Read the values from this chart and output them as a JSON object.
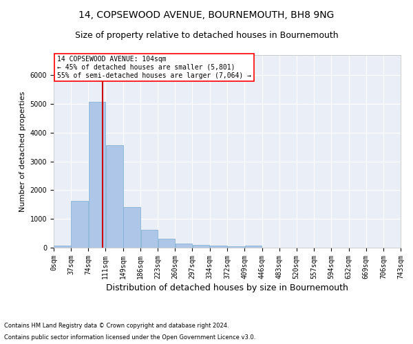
{
  "title1": "14, COPSEWOOD AVENUE, BOURNEMOUTH, BH8 9NG",
  "title2": "Size of property relative to detached houses in Bournemouth",
  "xlabel": "Distribution of detached houses by size in Bournemouth",
  "ylabel": "Number of detached properties",
  "footnote1": "Contains HM Land Registry data © Crown copyright and database right 2024.",
  "footnote2": "Contains public sector information licensed under the Open Government Licence v3.0.",
  "annotation_line1": "14 COPSEWOOD AVENUE: 104sqm",
  "annotation_line2": "← 45% of detached houses are smaller (5,801)",
  "annotation_line3": "55% of semi-detached houses are larger (7,064) →",
  "property_size": 104,
  "bin_edges": [
    0,
    37,
    74,
    111,
    149,
    186,
    223,
    260,
    297,
    334,
    372,
    409,
    446,
    483,
    520,
    557,
    594,
    632,
    669,
    706,
    743
  ],
  "bar_heights": [
    75,
    1625,
    5075,
    3575,
    1400,
    625,
    300,
    150,
    100,
    60,
    50,
    75,
    0,
    0,
    0,
    0,
    0,
    0,
    0,
    0
  ],
  "bar_color": "#aec6e8",
  "bar_edgecolor": "#7aaad0",
  "vline_color": "#cc0000",
  "vline_x": 104,
  "ylim": [
    0,
    6700
  ],
  "background_color": "#eaeff7",
  "grid_color": "#ffffff",
  "title1_fontsize": 10,
  "title2_fontsize": 9,
  "annotation_fontsize": 7,
  "ylabel_fontsize": 8,
  "xlabel_fontsize": 9,
  "tick_fontsize": 7,
  "footnote_fontsize": 6
}
